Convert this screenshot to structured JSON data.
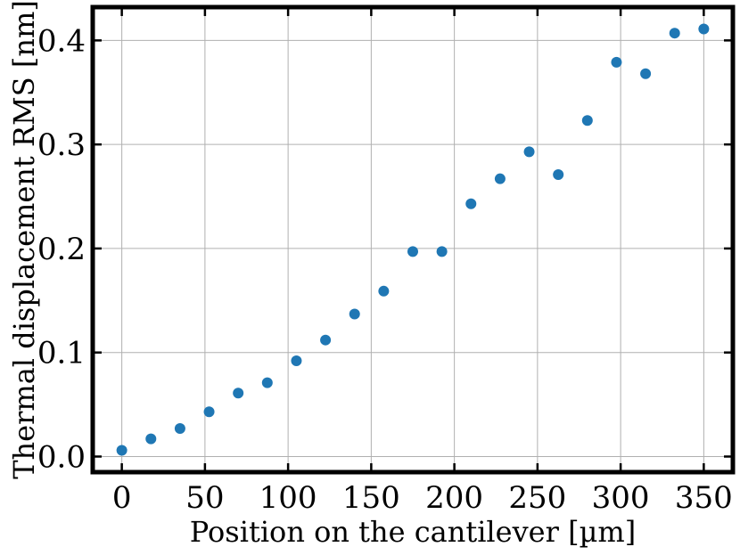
{
  "chart_data": {
    "type": "scatter",
    "xlabel": "Position on the cantilever [µm]",
    "ylabel": "Thermal displacement RMS [nm]",
    "xlim": [
      -17.5,
      367.5
    ],
    "ylim": [
      -0.015,
      0.432
    ],
    "xticks": [
      0,
      50,
      100,
      150,
      200,
      250,
      300,
      350
    ],
    "yticks": [
      0.0,
      0.1,
      0.2,
      0.3,
      0.4
    ],
    "xtick_labels": [
      "0",
      "50",
      "100",
      "150",
      "200",
      "250",
      "300",
      "350"
    ],
    "ytick_labels": [
      "0.0",
      "0.1",
      "0.2",
      "0.3",
      "0.4"
    ],
    "grid": true,
    "color": "#1f77b4",
    "x": [
      0,
      17.5,
      35,
      52.5,
      70,
      87.5,
      105,
      122.5,
      140,
      157.5,
      175,
      192.5,
      210,
      227.5,
      245,
      262.5,
      280,
      297.5,
      315,
      332.5,
      350
    ],
    "y": [
      0.006,
      0.017,
      0.027,
      0.043,
      0.061,
      0.071,
      0.092,
      0.112,
      0.137,
      0.159,
      0.197,
      0.197,
      0.243,
      0.267,
      0.293,
      0.271,
      0.323,
      0.379,
      0.368,
      0.407,
      0.411
    ]
  }
}
